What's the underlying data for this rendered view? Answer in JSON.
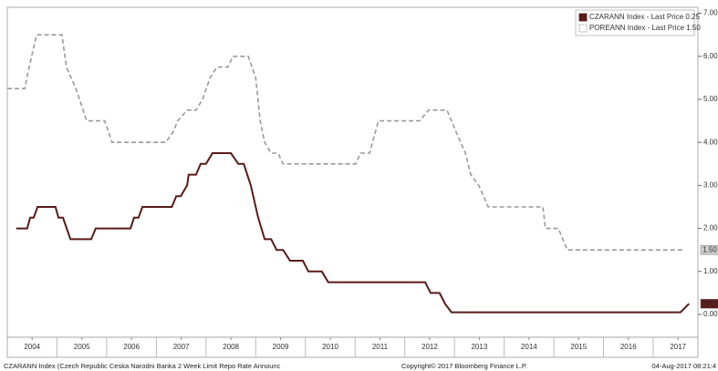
{
  "chart_data": {
    "type": "line",
    "footer_left": "CZARANN Index (Czech Republic Ceska Narodni Banka 2 Week Limit Repo Rate Announc",
    "footer_center": "Copyright© 2017 Bloomberg Finance L.P.",
    "footer_right": "04-Aug-2017 08:21:4",
    "xlim": [
      2004.0,
      2017.9
    ],
    "xticks": [
      {
        "value": 2004.5,
        "label": "2004"
      },
      {
        "value": 2005.5,
        "label": "2005"
      },
      {
        "value": 2006.5,
        "label": "2006"
      },
      {
        "value": 2007.5,
        "label": "2007"
      },
      {
        "value": 2008.5,
        "label": "2008"
      },
      {
        "value": 2009.5,
        "label": "2009"
      },
      {
        "value": 2010.5,
        "label": "2010"
      },
      {
        "value": 2011.5,
        "label": "2011"
      },
      {
        "value": 2012.5,
        "label": "2012"
      },
      {
        "value": 2013.5,
        "label": "2013"
      },
      {
        "value": 2014.5,
        "label": "2014"
      },
      {
        "value": 2015.5,
        "label": "2015"
      },
      {
        "value": 2016.5,
        "label": "2016"
      },
      {
        "value": 2017.5,
        "label": "2017"
      }
    ],
    "ylim": [
      -0.53,
      7.14
    ],
    "yticks": [
      {
        "value": 0,
        "label": "0.00"
      },
      {
        "value": 1,
        "label": "1.00"
      },
      {
        "value": 2,
        "label": "2.00"
      },
      {
        "value": 3,
        "label": "3.00"
      },
      {
        "value": 4,
        "label": "4.00"
      },
      {
        "value": 5,
        "label": "5.00"
      },
      {
        "value": 6,
        "label": "6.00"
      },
      {
        "value": 7,
        "label": "7.00"
      }
    ],
    "legend": "upper right",
    "series": [
      {
        "name": "CZARANN Index - Last Price  0.25",
        "color": "#5a1a1a",
        "dash": false,
        "tag": "0.25",
        "x": [
          2004.18,
          2004.4,
          2004.46,
          2004.53,
          2004.61,
          2004.97,
          2005.03,
          2005.12,
          2005.27,
          2005.69,
          2005.78,
          2006.48,
          2006.55,
          2006.64,
          2006.72,
          2007.31,
          2007.4,
          2007.49,
          2007.62,
          2007.65,
          2007.8,
          2007.89,
          2008.0,
          2008.13,
          2008.5,
          2008.65,
          2008.76,
          2008.9,
          2009.05,
          2009.18,
          2009.31,
          2009.42,
          2009.55,
          2009.69,
          2009.95,
          2010.06,
          2010.33,
          2010.46,
          2012.41,
          2012.52,
          2012.7,
          2012.81,
          2012.94,
          2017.55,
          2017.72
        ],
        "values": [
          2.0,
          2.0,
          2.25,
          2.25,
          2.5,
          2.5,
          2.25,
          2.25,
          1.75,
          1.75,
          2.0,
          2.0,
          2.25,
          2.25,
          2.5,
          2.5,
          2.75,
          2.75,
          3.0,
          3.25,
          3.25,
          3.5,
          3.5,
          3.75,
          3.75,
          3.5,
          3.5,
          3.0,
          2.25,
          1.75,
          1.75,
          1.5,
          1.5,
          1.25,
          1.25,
          1.0,
          1.0,
          0.75,
          0.75,
          0.5,
          0.5,
          0.25,
          0.05,
          0.05,
          0.25
        ]
      },
      {
        "name": "POREANN Index - Last Price  1.50",
        "color": "#9a9a9a",
        "dash": true,
        "tag": "1.50",
        "x": [
          2004.0,
          2004.35,
          2004.44,
          2004.59,
          2005.1,
          2005.19,
          2005.38,
          2005.6,
          2005.96,
          2006.11,
          2007.19,
          2007.34,
          2007.43,
          2007.62,
          2007.8,
          2007.93,
          2008.08,
          2008.22,
          2008.44,
          2008.54,
          2008.85,
          2009.0,
          2009.09,
          2009.18,
          2009.31,
          2009.45,
          2009.55,
          2011.01,
          2011.11,
          2011.29,
          2011.47,
          2012.3,
          2012.48,
          2012.85,
          2013.03,
          2013.22,
          2013.33,
          2013.49,
          2013.68,
          2014.78,
          2014.83,
          2015.09,
          2015.27,
          2017.59
        ],
        "values": [
          5.25,
          5.25,
          5.75,
          6.5,
          6.5,
          5.75,
          5.25,
          4.5,
          4.5,
          4.0,
          4.0,
          4.25,
          4.5,
          4.75,
          4.75,
          5.0,
          5.5,
          5.75,
          5.75,
          6.0,
          6.0,
          5.5,
          4.5,
          4.0,
          3.75,
          3.75,
          3.5,
          3.5,
          3.75,
          3.75,
          4.5,
          4.5,
          4.75,
          4.75,
          4.25,
          3.75,
          3.25,
          3.0,
          2.5,
          2.5,
          2.0,
          2.0,
          1.5,
          1.5
        ]
      }
    ]
  }
}
